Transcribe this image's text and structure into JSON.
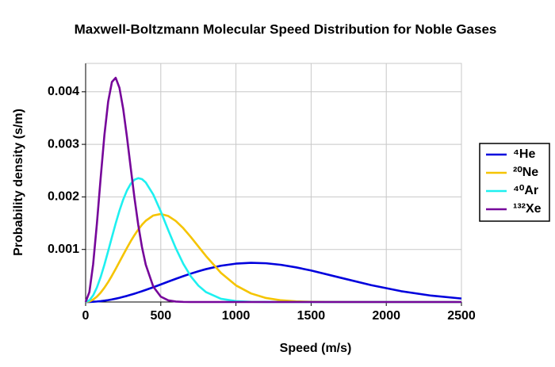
{
  "chart_data": {
    "type": "line",
    "title": "Maxwell-Boltzmann Molecular Speed Distribution for Noble Gases",
    "x_label": "Speed (m/s)",
    "y_label": "Probability density (s/m)",
    "x": [
      0,
      25,
      50,
      75,
      100,
      125,
      150,
      175,
      200,
      225,
      250,
      275,
      300,
      325,
      350,
      375,
      400,
      450,
      500,
      550,
      600,
      650,
      700,
      750,
      800,
      900,
      1000,
      1100,
      1200,
      1300,
      1400,
      1500,
      1700,
      1900,
      2100,
      2300,
      2500
    ],
    "series": [
      {
        "name": "⁴He",
        "color": "#0000dd",
        "values": [
          0,
          1e-06,
          4.1e-06,
          9.2e-06,
          1.62e-05,
          2.53e-05,
          3.62e-05,
          4.89e-05,
          6.34e-05,
          7.95e-05,
          9.73e-05,
          0.000116,
          0.000137,
          0.000159,
          0.000182,
          0.000205,
          0.00023,
          0.000281,
          0.000334,
          0.000388,
          0.000441,
          0.000492,
          0.00054,
          0.000585,
          0.000625,
          0.00069,
          0.00073,
          0.000746,
          0.000737,
          0.000707,
          0.000659,
          0.000599,
          0.000459,
          0.00032,
          0.000205,
          0.000121,
          6.59e-05
        ]
      },
      {
        "name": "²⁰Ne",
        "color": "#f5c400",
        "values": [
          0,
          1.16e-05,
          4.59e-05,
          0.000102,
          0.000178,
          0.000272,
          0.00038,
          0.000501,
          0.00063,
          0.000763,
          0.000898,
          0.00103,
          0.001156,
          0.001273,
          0.001379,
          0.00147,
          0.001546,
          0.001646,
          0.001675,
          0.001636,
          0.001541,
          0.001403,
          0.001236,
          0.001056,
          0.000877,
          0.000555,
          0.000316,
          0.000163,
          7.6e-05,
          3.23e-05,
          1.25e-05,
          4.4e-06,
          4e-07,
          0,
          0,
          0,
          0
        ]
      },
      {
        "name": "⁴⁰Ar",
        "color": "#1ef0f0",
        "values": [
          0,
          3.21e-05,
          0.000126,
          0.000277,
          0.000476,
          0.000711,
          0.000969,
          0.001235,
          0.001496,
          0.001738,
          0.00195,
          0.002122,
          0.00225,
          0.002328,
          0.002356,
          0.002338,
          0.002275,
          0.002045,
          0.001722,
          0.001365,
          0.001022,
          0.000725,
          0.000488,
          0.000312,
          0.00019,
          6.12e-05,
          1.64e-05,
          3.6e-06,
          7e-07,
          0,
          0,
          0,
          0,
          0,
          0,
          0,
          0
        ]
      },
      {
        "name": "¹³²Xe",
        "color": "#76069a",
        "values": [
          0,
          0.000189,
          0.00072,
          0.001491,
          0.002361,
          0.003178,
          0.003814,
          0.004187,
          0.004266,
          0.004075,
          0.003673,
          0.003139,
          0.002552,
          0.00198,
          0.001468,
          0.001043,
          0.00071,
          0.000292,
          0.000102,
          3.08e-05,
          8e-06,
          1.8e-06,
          0,
          0,
          0,
          0,
          0,
          0,
          0,
          0,
          0,
          0,
          0,
          0,
          0,
          0,
          0
        ]
      }
    ],
    "xlim": [
      0,
      2500
    ],
    "xticks": [
      0,
      500,
      1000,
      1500,
      2000,
      2500
    ],
    "ylim": [
      0,
      0.00454
    ],
    "yticks": [
      0.001,
      0.002,
      0.003,
      0.004
    ],
    "grid": true,
    "legend": "right"
  }
}
